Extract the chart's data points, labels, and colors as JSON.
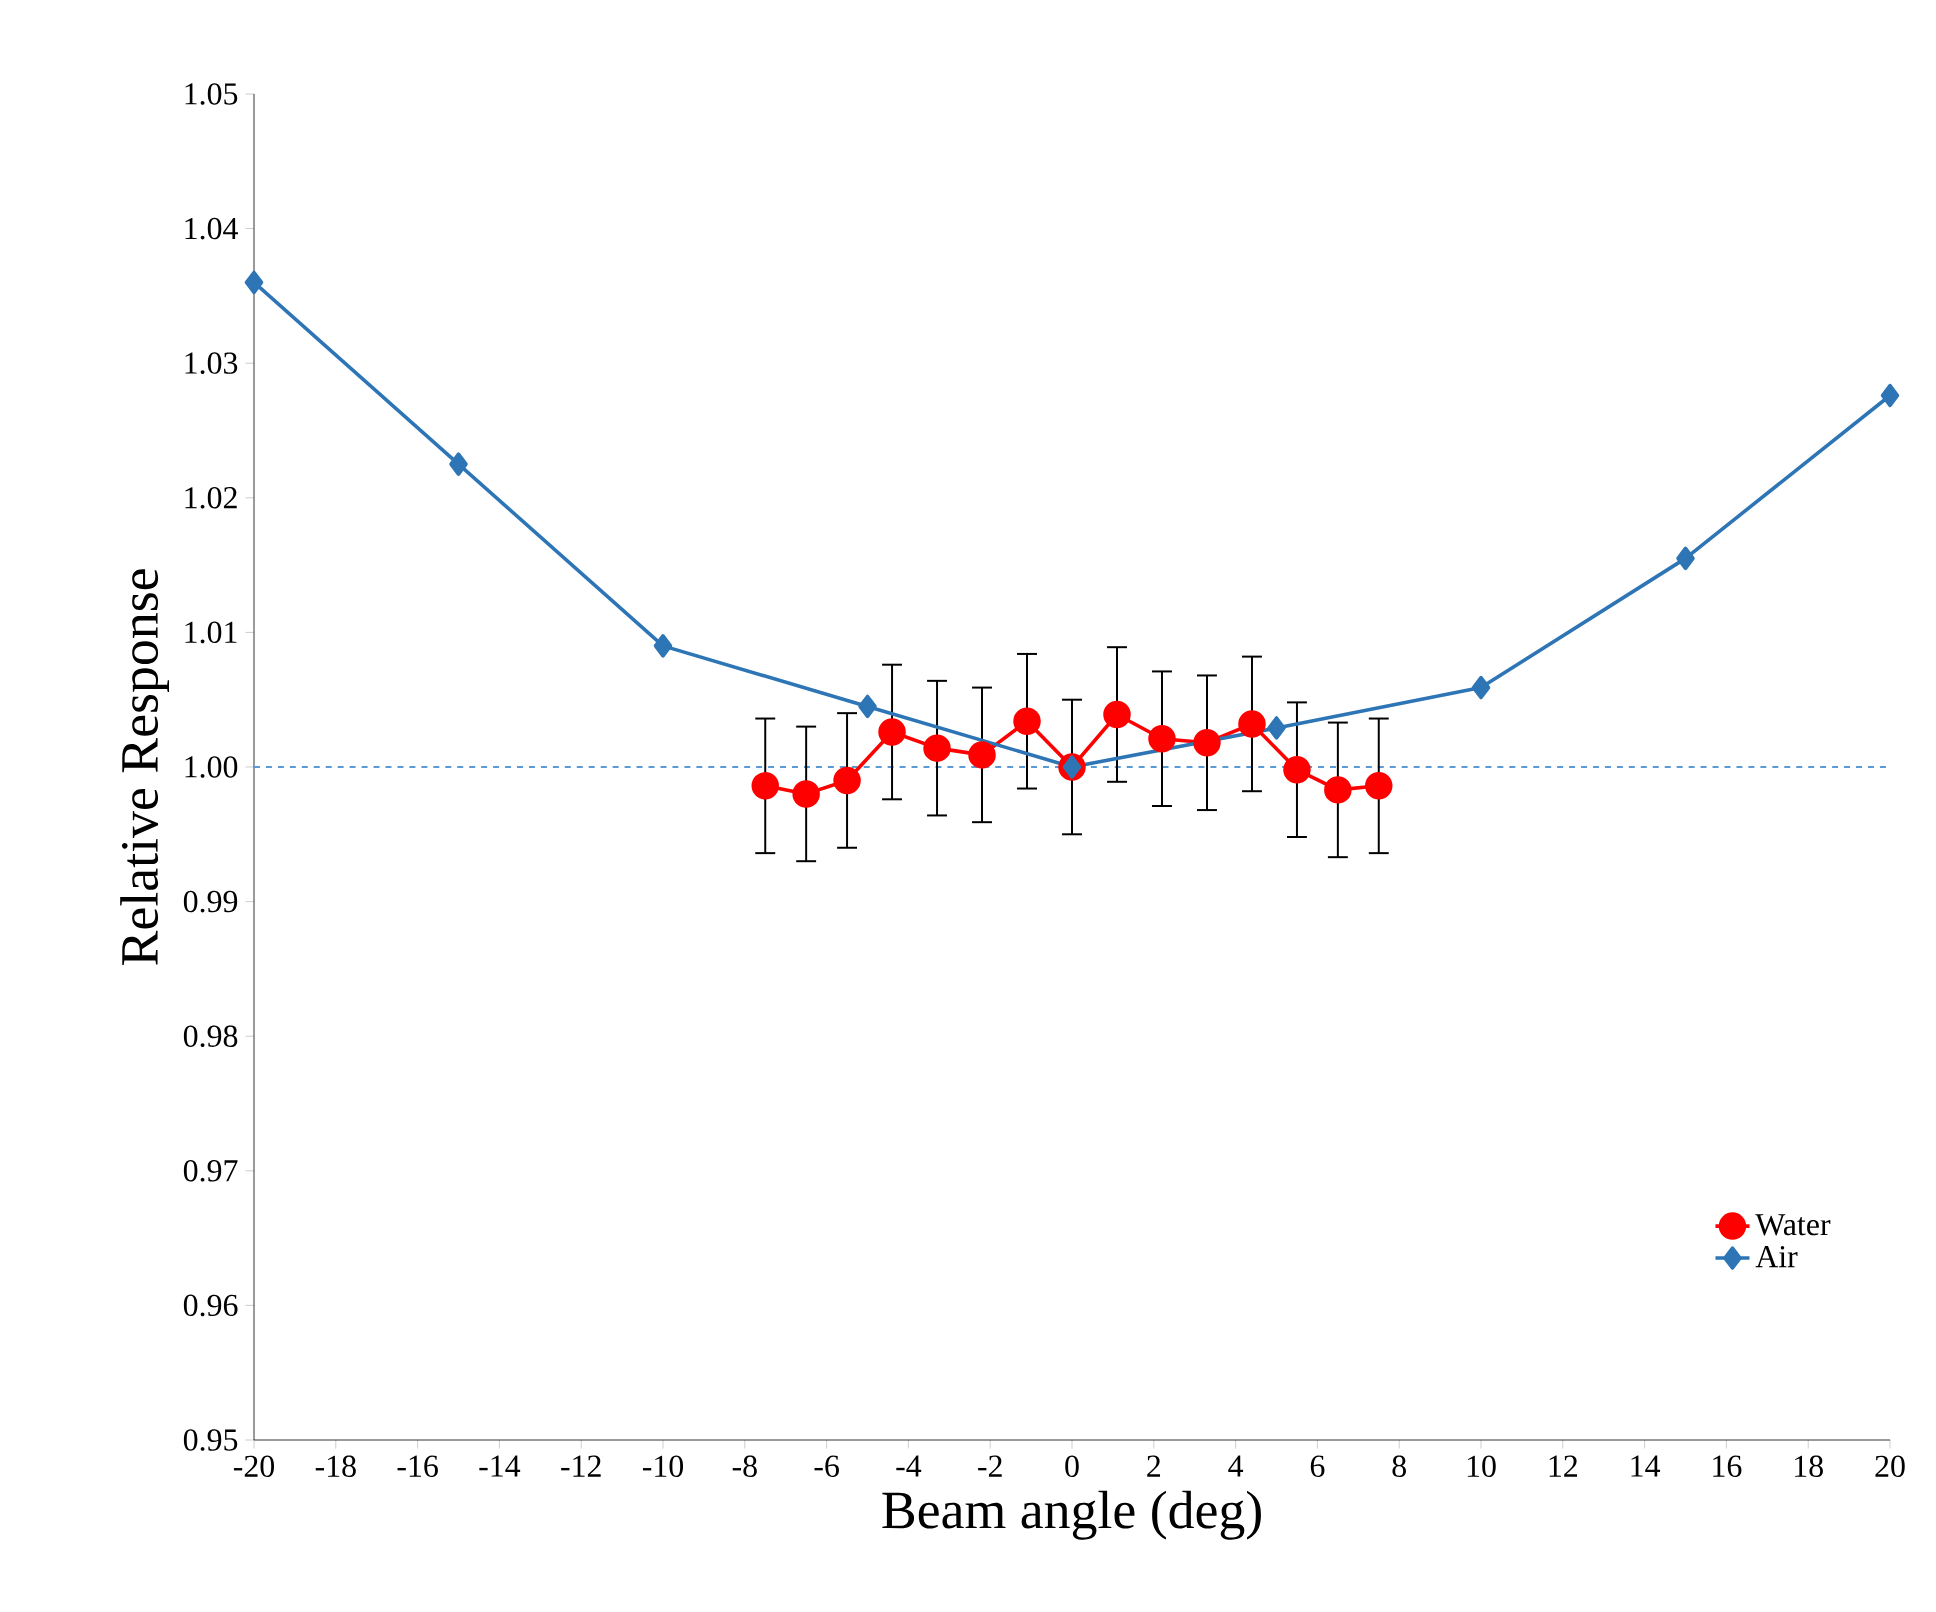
{
  "chart_data": {
    "type": "line",
    "xlabel": "Beam angle (deg)",
    "ylabel": "Relative Response",
    "xlim": [
      -20,
      20
    ],
    "xticks": [
      -20,
      -18,
      -16,
      -14,
      -12,
      -10,
      -8,
      -6,
      -4,
      -2,
      0,
      2,
      4,
      6,
      8,
      10,
      12,
      14,
      16,
      18,
      20
    ],
    "ylim": [
      0.95,
      1.05
    ],
    "yticks": [
      {
        "value": 0.95,
        "label": "0.95"
      },
      {
        "value": 0.96,
        "label": "0.96"
      },
      {
        "value": 0.97,
        "label": "0.97"
      },
      {
        "value": 0.98,
        "label": "0.98"
      },
      {
        "value": 0.99,
        "label": "0.99"
      },
      {
        "value": 1,
        "label": "1.00"
      },
      {
        "value": 1.01,
        "label": "1.01"
      },
      {
        "value": 1.02,
        "label": "1.02"
      },
      {
        "value": 1.03,
        "label": "1.03"
      },
      {
        "value": 1.04,
        "label": "1.04"
      },
      {
        "value": 1.05,
        "label": "1.05"
      }
    ],
    "grid": false,
    "legend": "bottom right",
    "line_style": "solid",
    "ref_lines": [
      {
        "axis": "y",
        "value": 1,
        "color": "#5b9bd5",
        "line_style": "dashed"
      }
    ],
    "series": [
      {
        "name": "Water",
        "color": "#ff0000",
        "marker": "circle",
        "x": [
          -7.5,
          -6.5,
          -5.5,
          -4.4,
          -3.3,
          -2.2,
          -1.1,
          0,
          1.1,
          2.2,
          3.3,
          4.4,
          5.5,
          6.5,
          7.5
        ],
        "values": [
          0.9986,
          0.998,
          0.999,
          1.0026,
          1.0014,
          1.0009,
          1.0034,
          1.0,
          1.0039,
          1.0021,
          1.0018,
          1.0032,
          0.9998,
          0.9983,
          0.9986
        ],
        "errors": [
          0.005,
          0.005,
          0.005,
          0.005,
          0.005,
          0.005,
          0.005,
          0.005,
          0.005,
          0.005,
          0.005,
          0.005,
          0.005,
          0.005,
          0.005
        ]
      },
      {
        "name": "Air",
        "color": "#2e75b6",
        "marker": "diamond",
        "x": [
          -20,
          -15,
          -10,
          -5,
          0,
          5,
          10,
          15,
          20
        ],
        "values": [
          1.036,
          1.0225,
          1.009,
          1.0045,
          1.0,
          1.0029,
          1.0059,
          1.0155,
          1.0276
        ]
      }
    ]
  }
}
